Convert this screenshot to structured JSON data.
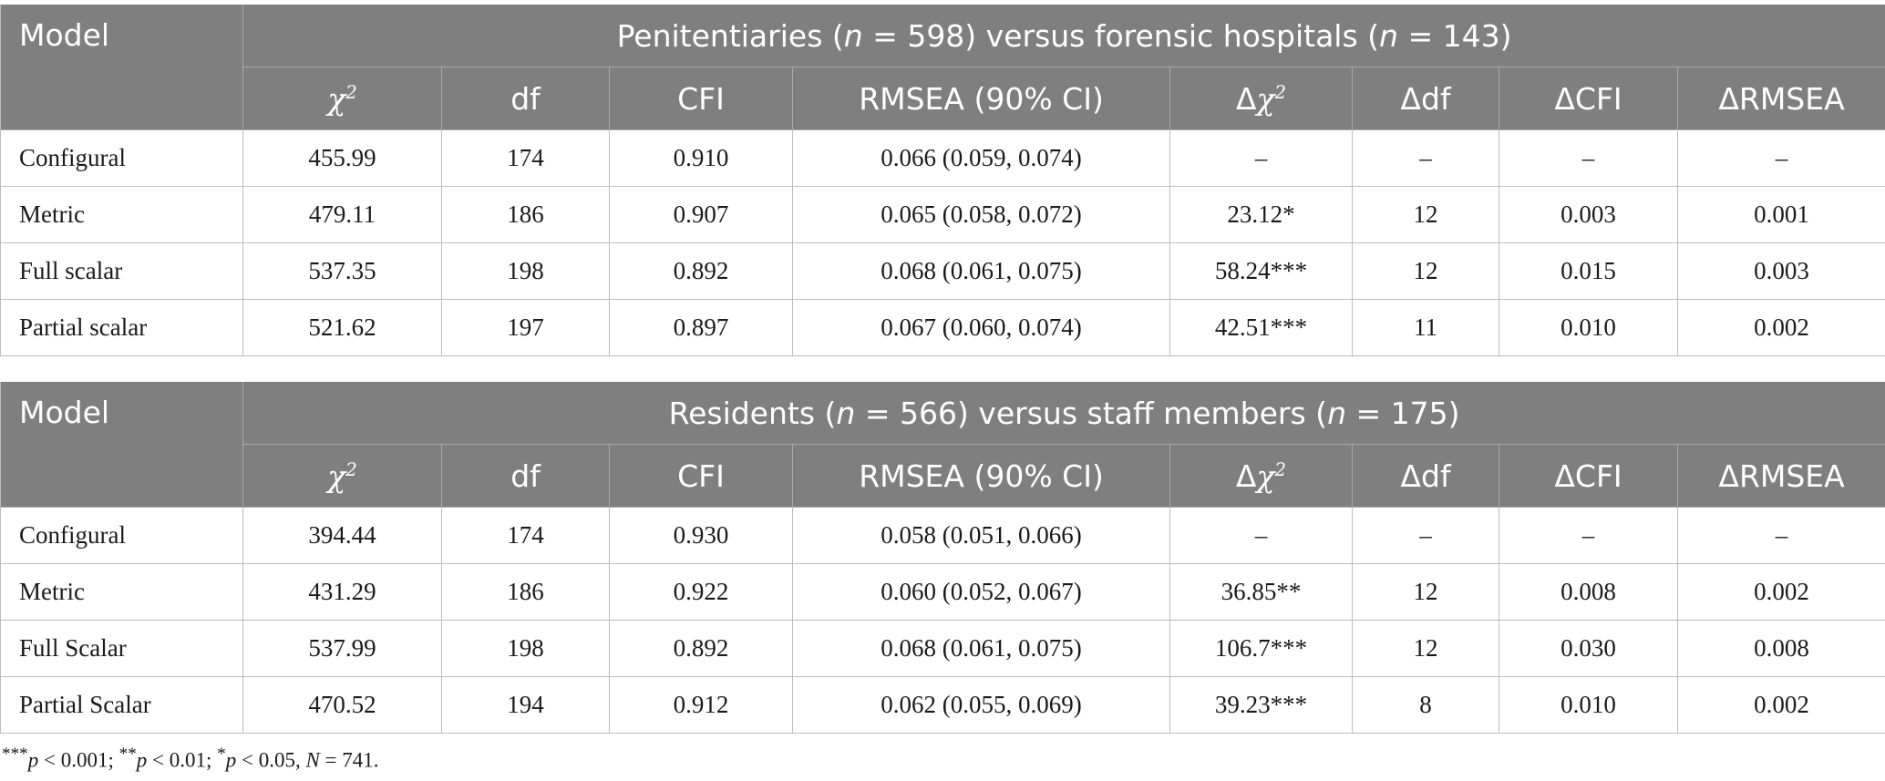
{
  "colors": {
    "header_bg": "#7f7f7f",
    "header_text": "#ffffff",
    "grid": "#bdbdbd"
  },
  "columns": {
    "model": "Model",
    "chi2": "χ",
    "chi2_sup": "2",
    "df": "df",
    "cfi": "CFI",
    "rmsea": "RMSEA (90% CI)",
    "dchi2_delta": "Δ",
    "dchi2": "χ",
    "dchi2_sup": "2",
    "ddf": "Δdf",
    "dcfi": "ΔCFI",
    "drmsea": "ΔRMSEA"
  },
  "tables": [
    {
      "group_title": {
        "pre": "Penitentiaries (",
        "n1_sym": "n",
        "n1_val": " = 598) versus forensic hospitals (",
        "n2_sym": "n",
        "n2_val": " = 143)"
      },
      "rows": [
        {
          "model": "Configural",
          "chi2": "455.99",
          "df": "174",
          "cfi": "0.910",
          "rmsea": "0.066 (0.059, 0.074)",
          "dchi2": "–",
          "ddf": "–",
          "dcfi": "–",
          "drmsea": "–"
        },
        {
          "model": "Metric",
          "chi2": "479.11",
          "df": "186",
          "cfi": "0.907",
          "rmsea": "0.065 (0.058, 0.072)",
          "dchi2": "23.12*",
          "ddf": "12",
          "dcfi": "0.003",
          "drmsea": "0.001"
        },
        {
          "model": "Full scalar",
          "chi2": "537.35",
          "df": "198",
          "cfi": "0.892",
          "rmsea": "0.068 (0.061, 0.075)",
          "dchi2": "58.24***",
          "ddf": "12",
          "dcfi": "0.015",
          "drmsea": "0.003"
        },
        {
          "model": "Partial scalar",
          "chi2": "521.62",
          "df": "197",
          "cfi": "0.897",
          "rmsea": "0.067 (0.060, 0.074)",
          "dchi2": "42.51***",
          "ddf": "11",
          "dcfi": "0.010",
          "drmsea": "0.002"
        }
      ]
    },
    {
      "group_title": {
        "pre": "Residents (",
        "n1_sym": "n",
        "n1_val": " = 566) versus staff members (",
        "n2_sym": "n",
        "n2_val": " = 175)"
      },
      "rows": [
        {
          "model": "Configural",
          "chi2": "394.44",
          "df": "174",
          "cfi": "0.930",
          "rmsea": "0.058 (0.051, 0.066)",
          "dchi2": "–",
          "ddf": "–",
          "dcfi": "–",
          "drmsea": "–"
        },
        {
          "model": "Metric",
          "chi2": "431.29",
          "df": "186",
          "cfi": "0.922",
          "rmsea": "0.060 (0.052, 0.067)",
          "dchi2": "36.85**",
          "ddf": "12",
          "dcfi": "0.008",
          "drmsea": "0.002"
        },
        {
          "model": "Full Scalar",
          "chi2": "537.99",
          "df": "198",
          "cfi": "0.892",
          "rmsea": "0.068 (0.061, 0.075)",
          "dchi2": "106.7***",
          "ddf": "12",
          "dcfi": "0.030",
          "drmsea": "0.008"
        },
        {
          "model": "Partial Scalar",
          "chi2": "470.52",
          "df": "194",
          "cfi": "0.912",
          "rmsea": "0.062 (0.055, 0.069)",
          "dchi2": "39.23***",
          "ddf": "8",
          "dcfi": "0.010",
          "drmsea": "0.002"
        }
      ]
    }
  ],
  "note": {
    "p1_stars": "***",
    "p1_sym": "p",
    "p1_val": " < 0.001; ",
    "p2_stars": "**",
    "p2_sym": "p",
    "p2_val": " < 0.01; ",
    "p3_stars": "*",
    "p3_sym": "p",
    "p3_val": " < 0.05, ",
    "N_sym": "N",
    "N_val": " = 741."
  }
}
